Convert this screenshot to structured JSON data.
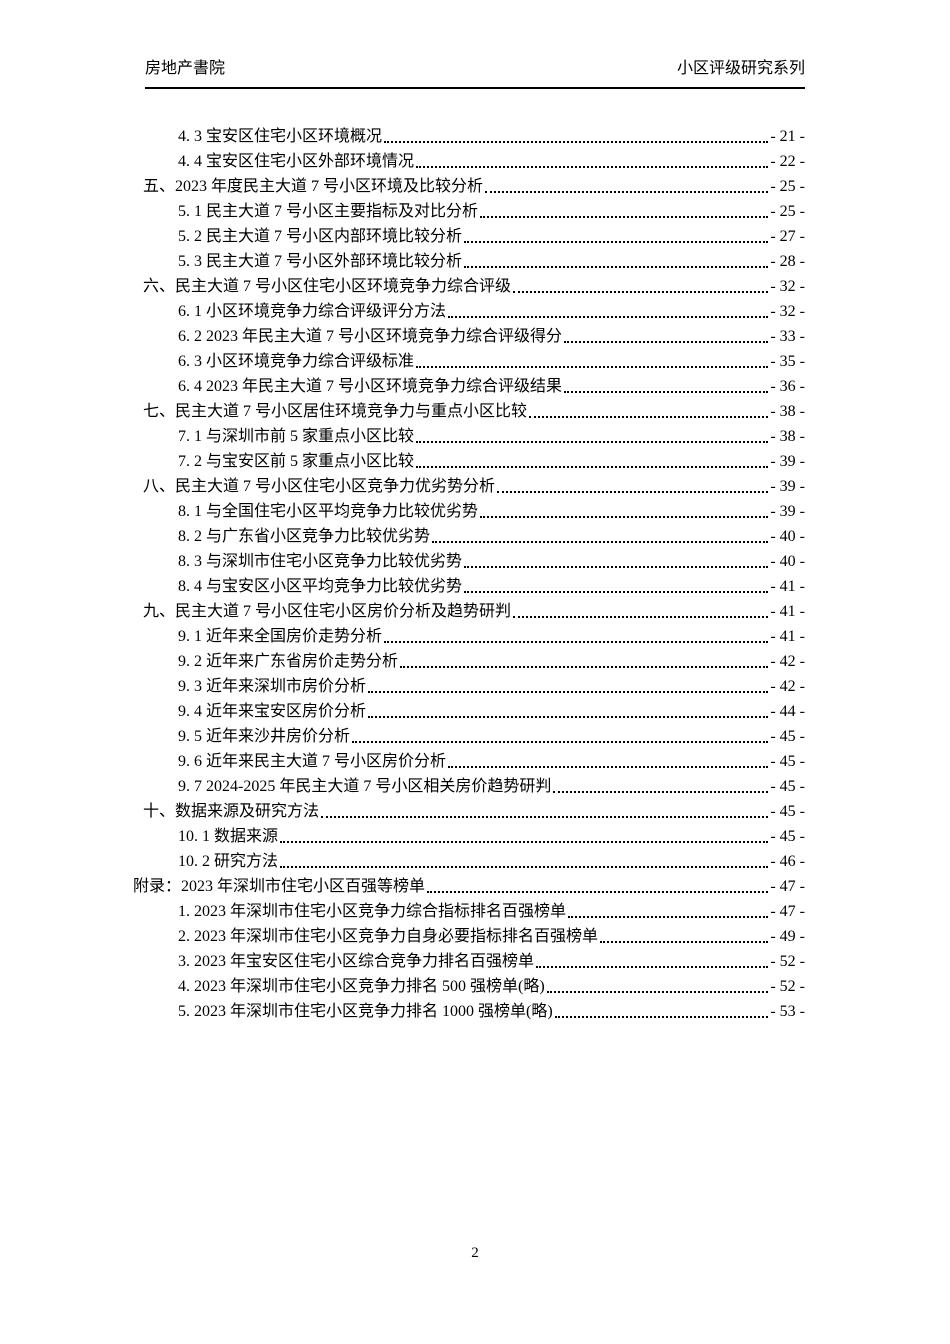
{
  "header": {
    "left": "房地产書院",
    "right": "小区评级研究系列"
  },
  "toc": {
    "entries": [
      {
        "level": 2,
        "label": "4. 3 宝安区住宅小区环境概况",
        "page": "- 21 -"
      },
      {
        "level": 2,
        "label": "4. 4 宝安区住宅小区外部环境情况",
        "page": "- 22 -"
      },
      {
        "level": 1,
        "label": "五、2023 年度民主大道 7 号小区环境及比较分析",
        "page": "- 25 -"
      },
      {
        "level": 2,
        "label": "5. 1 民主大道 7 号小区主要指标及对比分析",
        "page": "- 25 -"
      },
      {
        "level": 2,
        "label": "5. 2 民主大道 7 号小区内部环境比较分析",
        "page": "- 27 -"
      },
      {
        "level": 2,
        "label": "5. 3 民主大道 7 号小区外部环境比较分析",
        "page": "- 28 -"
      },
      {
        "level": 1,
        "label": "六、民主大道 7 号小区住宅小区环境竞争力综合评级",
        "page": "- 32 -"
      },
      {
        "level": 2,
        "label": "6. 1 小区环境竞争力综合评级评分方法",
        "page": "- 32 -"
      },
      {
        "level": 2,
        "label": "6. 2 2023 年民主大道 7 号小区环境竞争力综合评级得分",
        "page": "- 33 -"
      },
      {
        "level": 2,
        "label": "6. 3 小区环境竞争力综合评级标准",
        "page": "- 35 -"
      },
      {
        "level": 2,
        "label": "6. 4 2023 年民主大道 7 号小区环境竞争力综合评级结果",
        "page": "- 36 -"
      },
      {
        "level": 1,
        "label": "七、民主大道 7 号小区居住环境竞争力与重点小区比较",
        "page": "- 38 -"
      },
      {
        "level": 2,
        "label": "7. 1 与深圳市前 5 家重点小区比较",
        "page": "- 38 -"
      },
      {
        "level": 2,
        "label": "7. 2 与宝安区前 5 家重点小区比较",
        "page": "- 39 -"
      },
      {
        "level": 1,
        "label": "八、民主大道 7 号小区住宅小区竞争力优劣势分析",
        "page": "- 39 -"
      },
      {
        "level": 2,
        "label": "8. 1 与全国住宅小区平均竞争力比较优劣势",
        "page": "- 39 -"
      },
      {
        "level": 2,
        "label": "8. 2 与广东省小区竞争力比较优劣势",
        "page": "- 40 -"
      },
      {
        "level": 2,
        "label": "8. 3 与深圳市住宅小区竞争力比较优劣势",
        "page": "- 40 -"
      },
      {
        "level": 2,
        "label": "8. 4 与宝安区小区平均竞争力比较优劣势",
        "page": "- 41 -"
      },
      {
        "level": 1,
        "label": "九、民主大道 7 号小区住宅小区房价分析及趋势研判",
        "page": "- 41 -"
      },
      {
        "level": 2,
        "label": "9. 1 近年来全国房价走势分析",
        "page": "- 41 -"
      },
      {
        "level": 2,
        "label": "9. 2 近年来广东省房价走势分析",
        "page": "- 42 -"
      },
      {
        "level": 2,
        "label": "9. 3 近年来深圳市房价分析",
        "page": "- 42 -"
      },
      {
        "level": 2,
        "label": "9. 4 近年来宝安区房价分析",
        "page": "- 44 -"
      },
      {
        "level": 2,
        "label": "9. 5 近年来沙井房价分析",
        "page": "- 45 -"
      },
      {
        "level": 2,
        "label": "9. 6 近年来民主大道 7 号小区房价分析",
        "page": "- 45 -"
      },
      {
        "level": 2,
        "label": "9. 7 2024-2025 年民主大道 7 号小区相关房价趋势研判",
        "page": "- 45 -"
      },
      {
        "level": 1,
        "label": "十、数据来源及研究方法",
        "page": "- 45 -"
      },
      {
        "level": 2,
        "label": "10. 1 数据来源",
        "page": "- 45 -"
      },
      {
        "level": 2,
        "label": "10. 2 研究方法",
        "page": "- 46 -"
      },
      {
        "level": 0,
        "label": "附录：2023 年深圳市住宅小区百强等榜单",
        "page": "- 47 -"
      },
      {
        "level": 2,
        "label": "1. 2023 年深圳市住宅小区竞争力综合指标排名百强榜单",
        "page": "- 47 -"
      },
      {
        "level": 2,
        "label": "2. 2023 年深圳市住宅小区竞争力自身必要指标排名百强榜单",
        "page": "- 49 -"
      },
      {
        "level": 2,
        "label": "3. 2023 年宝安区住宅小区综合竞争力排名百强榜单",
        "page": "- 52 -"
      },
      {
        "level": 2,
        "label": "4. 2023 年深圳市住宅小区竞争力排名 500 强榜单(略)",
        "page": "- 52 -"
      },
      {
        "level": 2,
        "label": "5. 2023 年深圳市住宅小区竞争力排名 1000 强榜单(略)",
        "page": "- 53 -"
      }
    ]
  },
  "footer": {
    "page_number": "2"
  }
}
